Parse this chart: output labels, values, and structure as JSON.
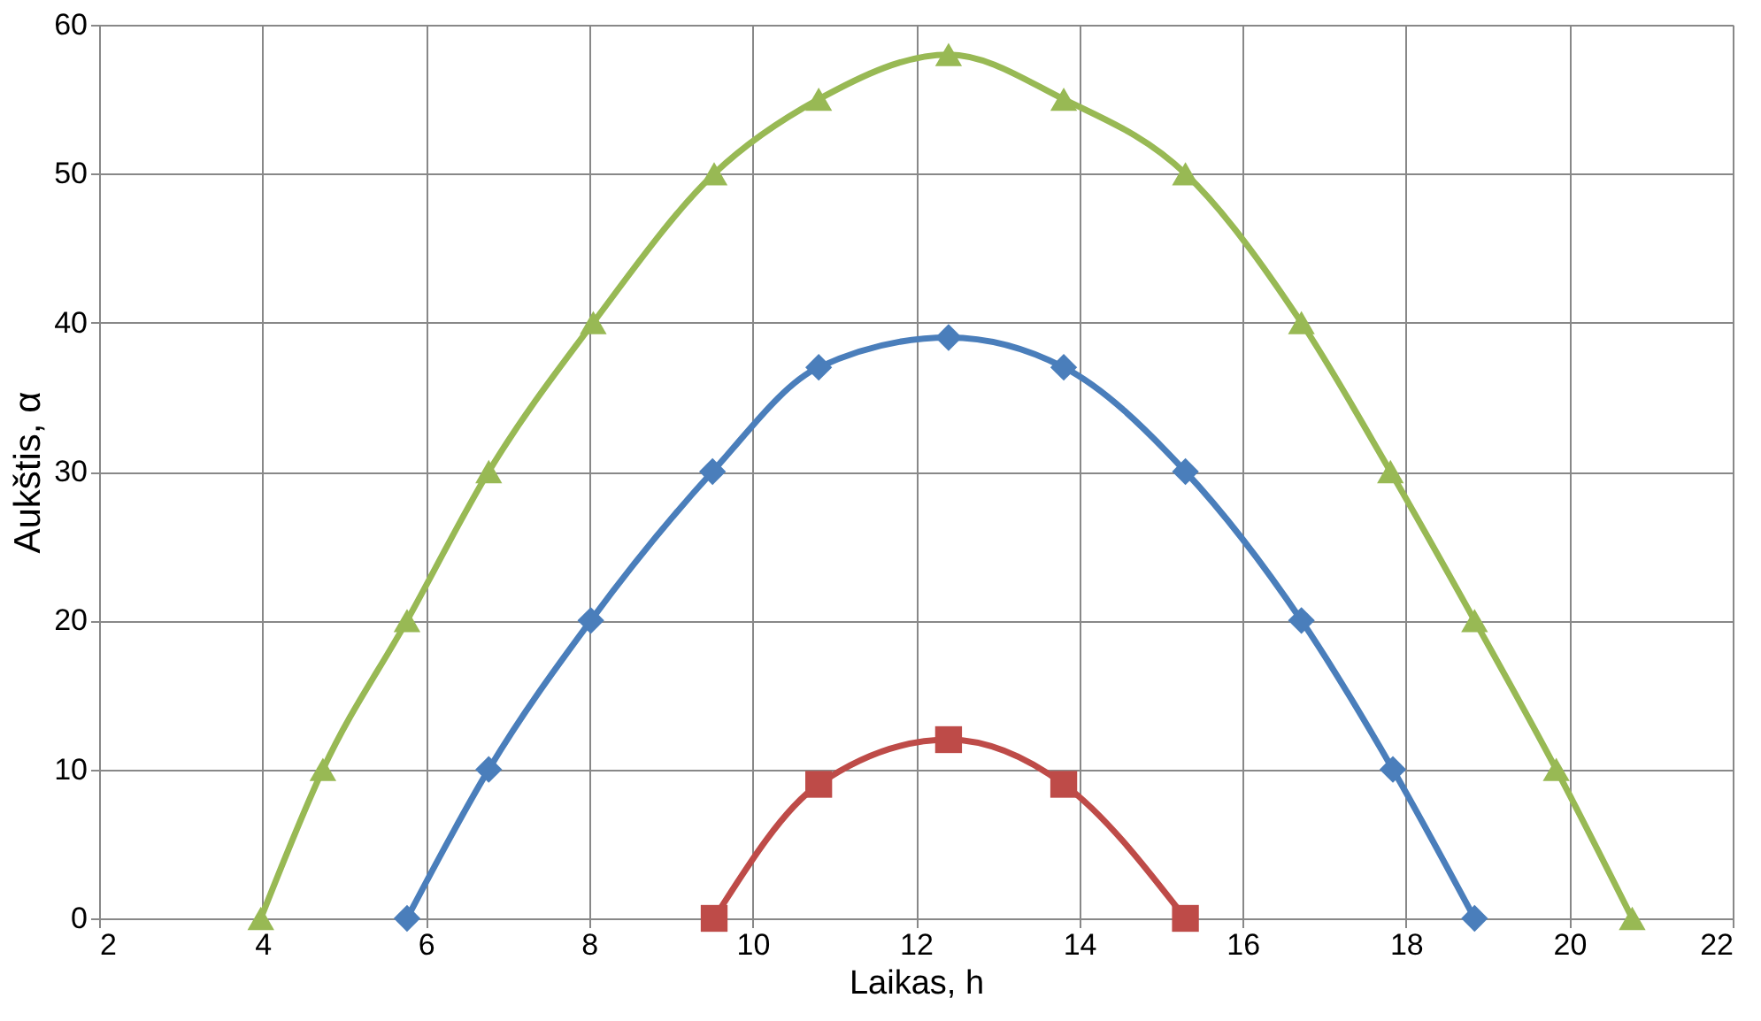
{
  "chart_data": {
    "type": "line",
    "xlabel": "Laikas, h",
    "ylabel": "Aukštis, α",
    "xlim": [
      2,
      22
    ],
    "xticks": [
      2,
      4,
      6,
      8,
      10,
      12,
      14,
      16,
      18,
      20,
      22
    ],
    "ylim": [
      0,
      60
    ],
    "yticks": [
      0,
      10,
      20,
      30,
      40,
      50,
      60
    ],
    "grid": true,
    "series": [
      {
        "color": "#98b954",
        "marker": "triangle",
        "x": [
          3.98,
          4.74,
          5.77,
          6.77,
          8.05,
          9.53,
          10.81,
          12.4,
          13.81,
          15.3,
          16.72,
          17.81,
          18.84,
          19.84,
          20.77
        ],
        "values": [
          0,
          10,
          20,
          30,
          40,
          50,
          55,
          58,
          55,
          50,
          40,
          30,
          20,
          10,
          0
        ]
      },
      {
        "color": "#4a7ebb",
        "marker": "diamond",
        "x": [
          5.77,
          6.77,
          8.02,
          9.51,
          10.81,
          12.4,
          13.81,
          15.3,
          16.72,
          17.84,
          18.84
        ],
        "values": [
          0,
          10,
          20,
          30,
          37,
          39,
          37,
          30,
          20,
          10,
          0
        ]
      },
      {
        "color": "#be4b48",
        "marker": "square",
        "x": [
          9.53,
          10.81,
          12.4,
          13.81,
          15.3
        ],
        "values": [
          0,
          9,
          12,
          9,
          0
        ]
      }
    ]
  }
}
